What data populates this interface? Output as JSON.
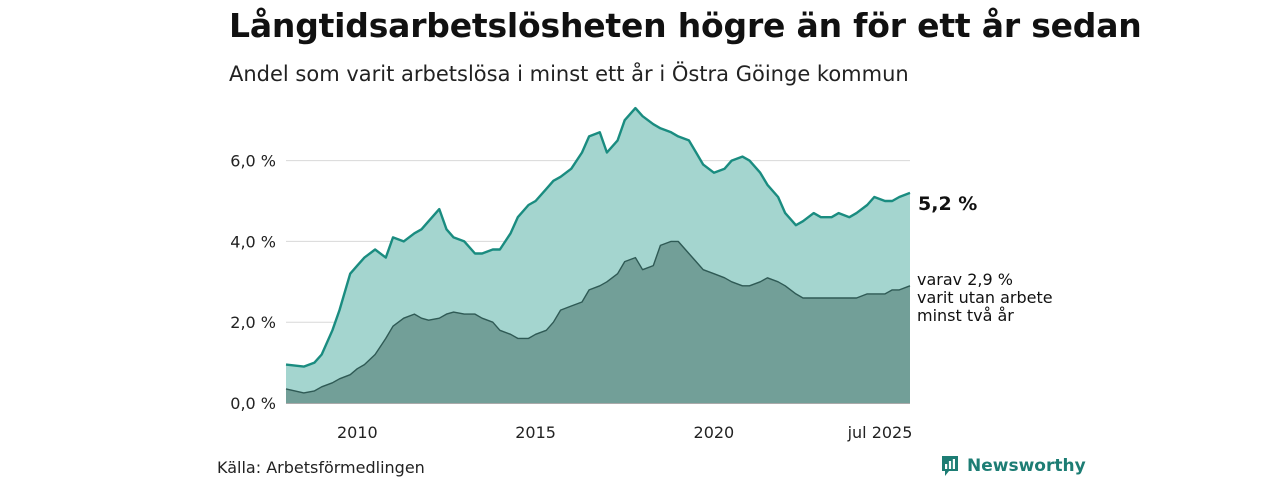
{
  "header": {
    "title": "Långtidsarbetslösheten högre än för ett år sedan",
    "subtitle": "Andel som varit arbetslösa i minst ett år i Östra Göinge kommun"
  },
  "footer": {
    "source": "Källa: Arbetsförmedlingen",
    "brand": "Newsworthy"
  },
  "colors": {
    "outer_fill": "#a4d5cf",
    "outer_line": "#1a8c80",
    "inner_fill": "#729f98",
    "inner_line": "#2f5a55",
    "grid": "#d8d8d8",
    "brand": "#1d7d74"
  },
  "chart_data": {
    "type": "area",
    "y_unit": "%",
    "ylim": [
      0,
      7.5
    ],
    "y_ticks": [
      0,
      2,
      4,
      6
    ],
    "y_tick_labels": [
      "0,0 %",
      "2,0 %",
      "4,0 %",
      "6,0 %"
    ],
    "x_ticks": [
      2010,
      2015,
      2020,
      2025.5
    ],
    "x_tick_labels": [
      "2010",
      "2015",
      "2020",
      "jul 2025"
    ],
    "xlim": [
      2008.0,
      2025.5
    ],
    "grid": true,
    "series": [
      {
        "label": "5,2 %",
        "x": [
          2008.0,
          2008.5,
          2008.8,
          2009.0,
          2009.3,
          2009.5,
          2009.8,
          2010.0,
          2010.2,
          2010.5,
          2010.8,
          2011.0,
          2011.3,
          2011.6,
          2011.8,
          2012.0,
          2012.3,
          2012.5,
          2012.7,
          2013.0,
          2013.3,
          2013.5,
          2013.8,
          2014.0,
          2014.3,
          2014.5,
          2014.8,
          2015.0,
          2015.3,
          2015.5,
          2015.7,
          2016.0,
          2016.3,
          2016.5,
          2016.8,
          2017.0,
          2017.3,
          2017.5,
          2017.8,
          2018.0,
          2018.3,
          2018.5,
          2018.8,
          2019.0,
          2019.3,
          2019.5,
          2019.7,
          2020.0,
          2020.3,
          2020.5,
          2020.8,
          2021.0,
          2021.3,
          2021.5,
          2021.8,
          2022.0,
          2022.3,
          2022.5,
          2022.8,
          2023.0,
          2023.3,
          2023.5,
          2023.8,
          2024.0,
          2024.3,
          2024.5,
          2024.8,
          2025.0,
          2025.2,
          2025.5
        ],
        "values": [
          0.95,
          0.9,
          1.0,
          1.2,
          1.8,
          2.3,
          3.2,
          3.4,
          3.6,
          3.8,
          3.6,
          4.1,
          4.0,
          4.2,
          4.3,
          4.5,
          4.8,
          4.3,
          4.1,
          4.0,
          3.7,
          3.7,
          3.8,
          3.8,
          4.2,
          4.6,
          4.9,
          5.0,
          5.3,
          5.5,
          5.6,
          5.8,
          6.2,
          6.6,
          6.7,
          6.2,
          6.5,
          7.0,
          7.3,
          7.1,
          6.9,
          6.8,
          6.7,
          6.6,
          6.5,
          6.2,
          5.9,
          5.7,
          5.8,
          6.0,
          6.1,
          6.0,
          5.7,
          5.4,
          5.1,
          4.7,
          4.4,
          4.5,
          4.7,
          4.6,
          4.6,
          4.7,
          4.6,
          4.7,
          4.9,
          5.1,
          5.0,
          5.0,
          5.1,
          5.2
        ]
      },
      {
        "label": "varav 2,9 % varit utan arbete minst två år",
        "x": [
          2008.0,
          2008.5,
          2008.8,
          2009.0,
          2009.3,
          2009.5,
          2009.8,
          2010.0,
          2010.2,
          2010.5,
          2010.8,
          2011.0,
          2011.3,
          2011.6,
          2011.8,
          2012.0,
          2012.3,
          2012.5,
          2012.7,
          2013.0,
          2013.3,
          2013.5,
          2013.8,
          2014.0,
          2014.3,
          2014.5,
          2014.8,
          2015.0,
          2015.3,
          2015.5,
          2015.7,
          2016.0,
          2016.3,
          2016.5,
          2016.8,
          2017.0,
          2017.3,
          2017.5,
          2017.8,
          2018.0,
          2018.3,
          2018.5,
          2018.8,
          2019.0,
          2019.3,
          2019.5,
          2019.7,
          2020.0,
          2020.3,
          2020.5,
          2020.8,
          2021.0,
          2021.3,
          2021.5,
          2021.8,
          2022.0,
          2022.3,
          2022.5,
          2022.8,
          2023.0,
          2023.3,
          2023.5,
          2023.8,
          2024.0,
          2024.3,
          2024.5,
          2024.8,
          2025.0,
          2025.2,
          2025.5
        ],
        "values": [
          0.35,
          0.25,
          0.3,
          0.4,
          0.5,
          0.6,
          0.7,
          0.85,
          0.95,
          1.2,
          1.6,
          1.9,
          2.1,
          2.2,
          2.1,
          2.05,
          2.1,
          2.2,
          2.25,
          2.2,
          2.2,
          2.1,
          2.0,
          1.8,
          1.7,
          1.6,
          1.6,
          1.7,
          1.8,
          2.0,
          2.3,
          2.4,
          2.5,
          2.8,
          2.9,
          3.0,
          3.2,
          3.5,
          3.6,
          3.3,
          3.4,
          3.9,
          4.0,
          4.0,
          3.7,
          3.5,
          3.3,
          3.2,
          3.1,
          3.0,
          2.9,
          2.9,
          3.0,
          3.1,
          3.0,
          2.9,
          2.7,
          2.6,
          2.6,
          2.6,
          2.6,
          2.6,
          2.6,
          2.6,
          2.7,
          2.7,
          2.7,
          2.8,
          2.8,
          2.9
        ]
      }
    ]
  }
}
